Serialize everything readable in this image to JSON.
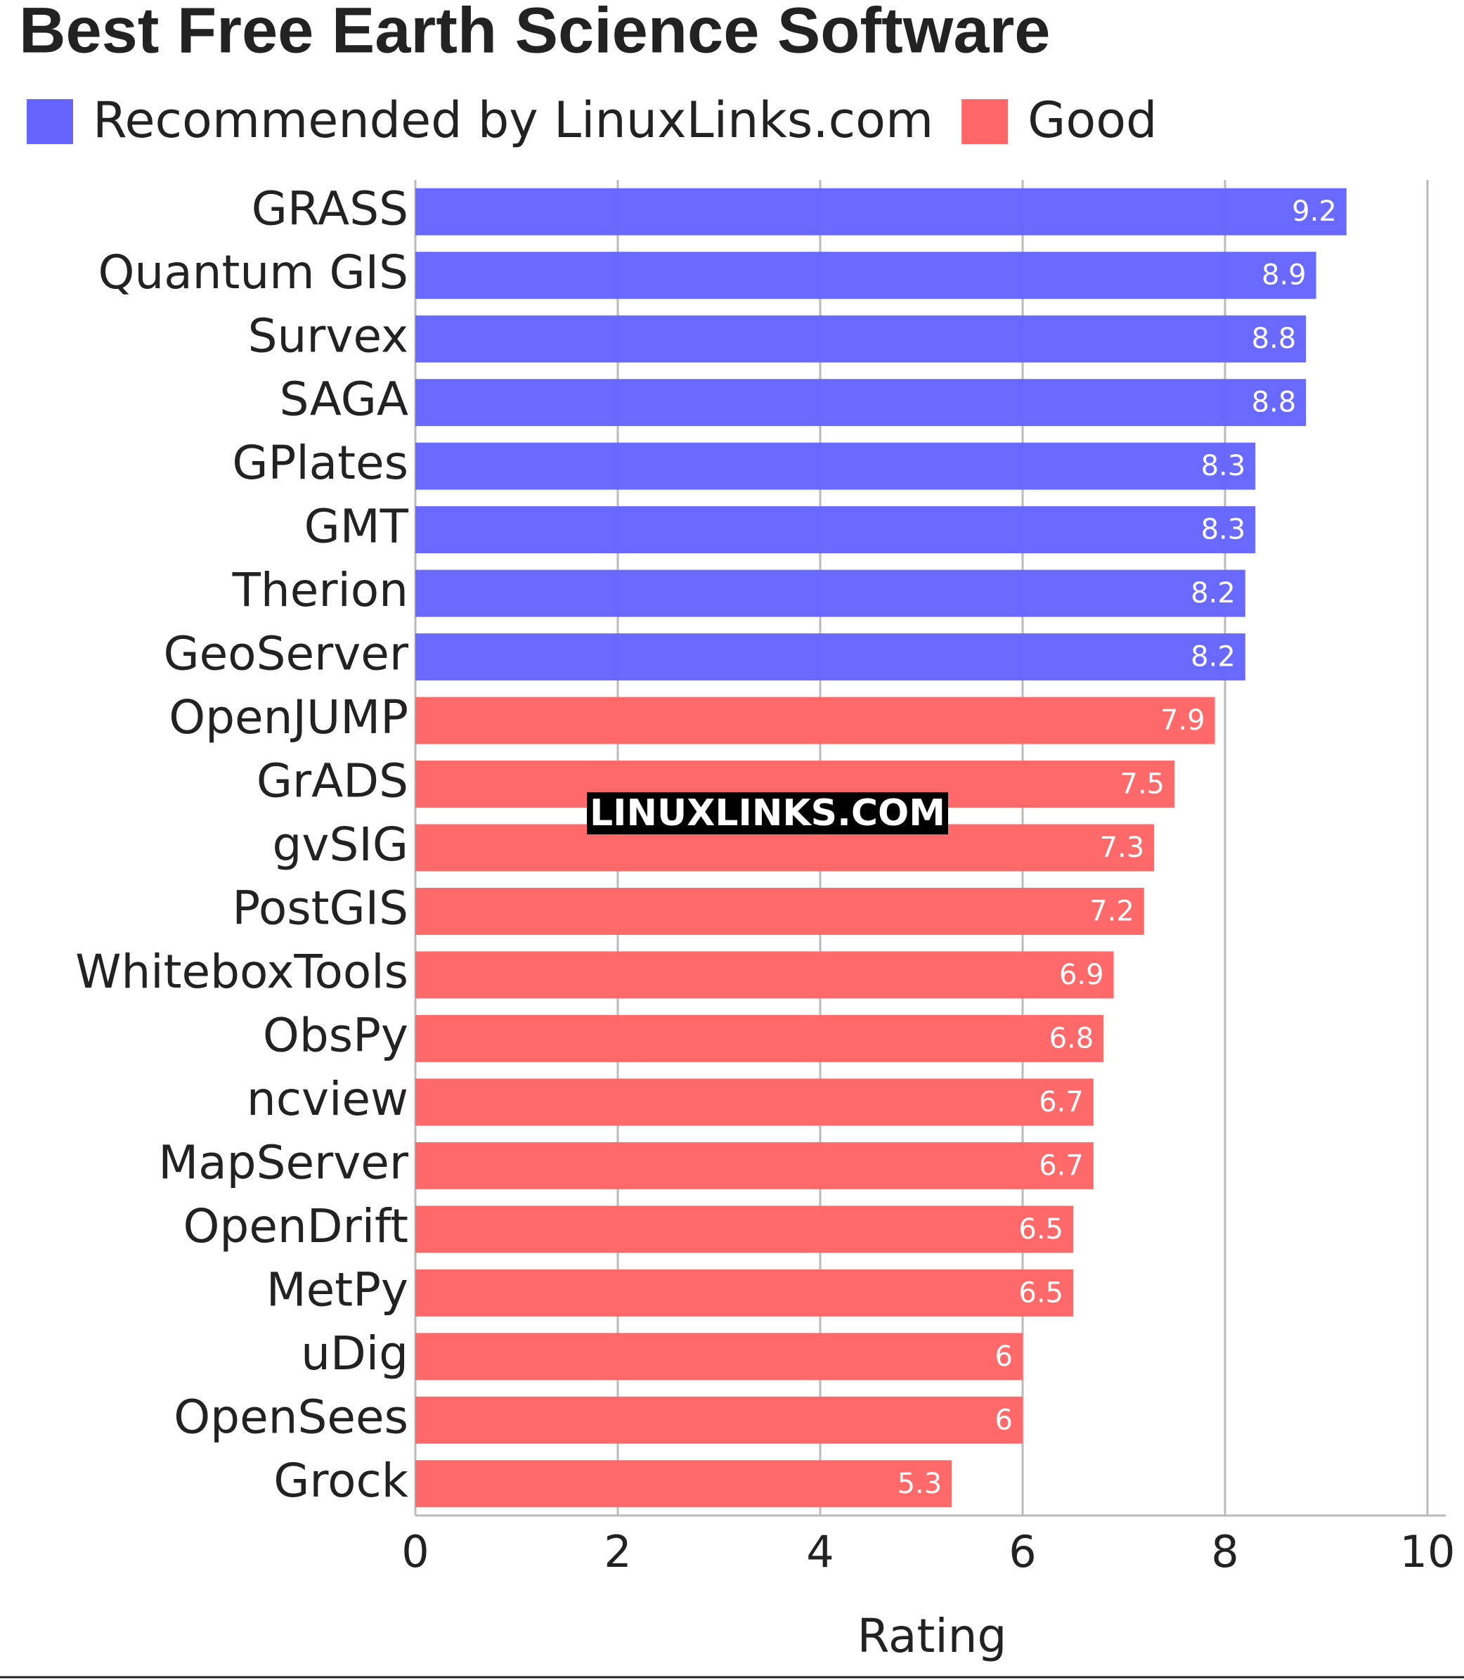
{
  "chart_data": {
    "type": "barh",
    "title": "Best Free Earth Science Software",
    "categories": [
      "GRASS",
      "Quantum GIS",
      "Survex",
      "SAGA",
      "GPlates",
      "GMT",
      "Therion",
      "GeoServer",
      "OpenJUMP",
      "GrADS",
      "gvSIG",
      "PostGIS",
      "WhiteboxTools",
      "ObsPy",
      "ncview",
      "MapServer",
      "OpenDrift",
      "MetPy",
      "uDig",
      "OpenSees",
      "Grock"
    ],
    "series": [
      {
        "name": "Recommended by LinuxLinks.com",
        "color": "#6666ff",
        "values": [
          9.2,
          8.9,
          8.8,
          8.8,
          8.3,
          8.3,
          8.2,
          8.2,
          null,
          null,
          null,
          null,
          null,
          null,
          null,
          null,
          null,
          null,
          null,
          null,
          null
        ]
      },
      {
        "name": "Good",
        "color": "#ff6666",
        "values": [
          null,
          null,
          null,
          null,
          null,
          null,
          null,
          null,
          7.9,
          7.5,
          7.3,
          7.2,
          6.9,
          6.8,
          6.7,
          6.7,
          6.5,
          6.5,
          6,
          6,
          5.3
        ]
      }
    ],
    "xlabel": "Rating",
    "xlim": [
      0,
      10
    ],
    "xticks": [
      0,
      2,
      4,
      6,
      8,
      10
    ],
    "grid": true,
    "watermark": "LINUXLINKS.COM"
  }
}
